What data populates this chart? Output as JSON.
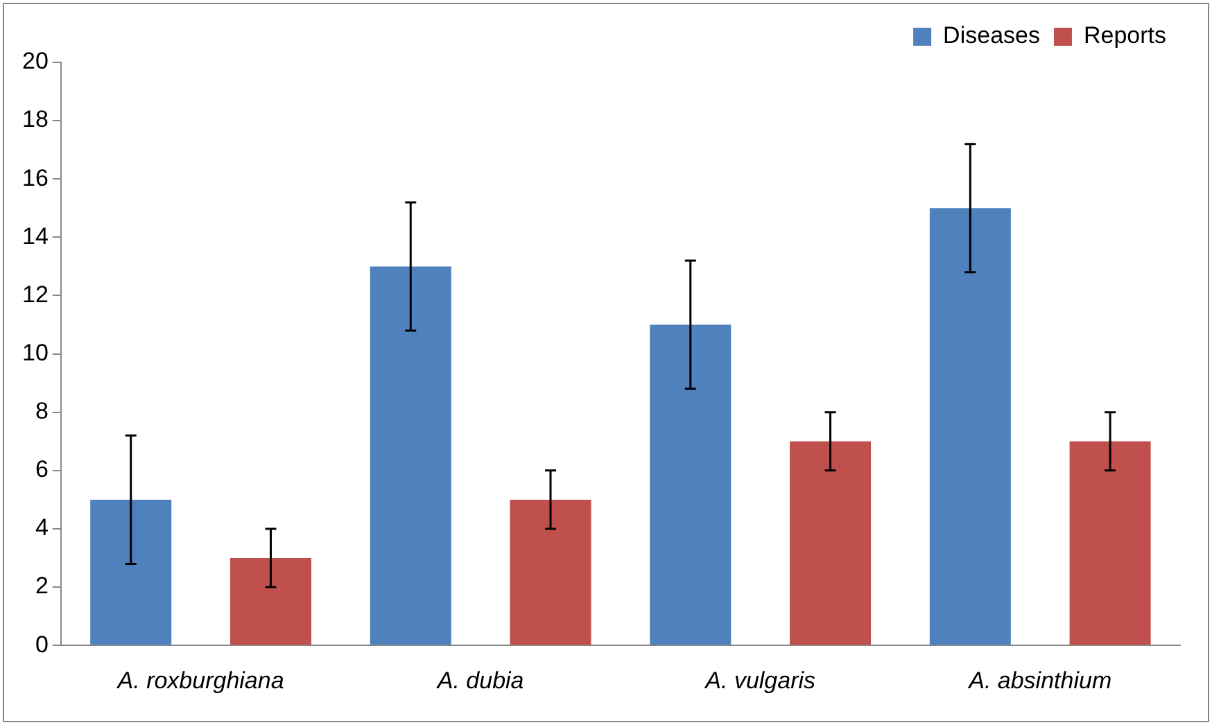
{
  "chart_data": {
    "type": "bar",
    "categories": [
      "A. roxburghiana",
      "A. dubia",
      "A. vulgaris",
      "A. absinthium"
    ],
    "series": [
      {
        "name": "Diseases",
        "color": "#4f81bd",
        "values": [
          5,
          13,
          11,
          15
        ],
        "errors": [
          2.2,
          2.2,
          2.2,
          2.2
        ]
      },
      {
        "name": "Reports",
        "color": "#c0504d",
        "values": [
          3,
          5,
          7,
          7
        ],
        "errors": [
          1,
          1,
          1,
          1
        ]
      }
    ],
    "ylim": [
      0,
      20
    ],
    "yticks": [
      0,
      2,
      4,
      6,
      8,
      10,
      12,
      14,
      16,
      18,
      20
    ],
    "grid": false,
    "legend": "top right"
  }
}
